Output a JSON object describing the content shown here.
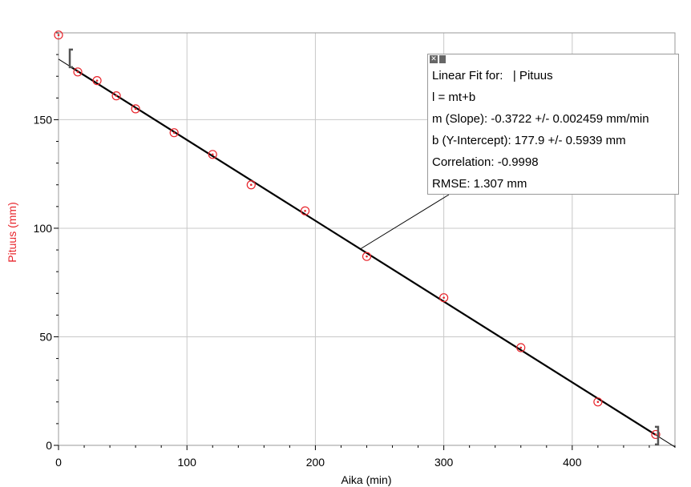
{
  "chart_data": {
    "type": "scatter",
    "xlabel": "Aika (min)",
    "ylabel": "Pituus (mm)",
    "xlim": [
      0,
      480
    ],
    "ylim": [
      0,
      190
    ],
    "xticks": [
      0,
      100,
      200,
      300,
      400
    ],
    "yticks": [
      0,
      50,
      100,
      150
    ],
    "x_tick_labels": [
      "0",
      "100",
      "200",
      "300",
      "400"
    ],
    "y_tick_labels": [
      "0",
      "50",
      "100",
      "150"
    ],
    "grid": true,
    "colors": {
      "points": "#e8242b",
      "fit_line": "#000000",
      "ylabel": "#e8242b",
      "grid": "#c8c8c8"
    },
    "series": [
      {
        "x": [
          0,
          15,
          30,
          45,
          60,
          90,
          120,
          150,
          192,
          240,
          300,
          360,
          420,
          465
        ],
        "y": [
          189,
          172,
          168,
          161,
          155,
          144,
          134,
          120,
          108,
          87,
          68,
          45,
          20,
          5
        ]
      }
    ],
    "fit": {
      "slope": -0.3722,
      "intercept": 177.9,
      "range": [
        10,
        465
      ]
    },
    "annotation": {
      "lines": [
        "Linear Fit for:   | Pituus",
        "l = mt+b",
        "m (Slope): -0.3722 +/- 0.002459 mm/min",
        "b (Y-Intercept): 177.9 +/- 0.5939 mm",
        "Correlation: -0.9998",
        "RMSE: 1.307 mm"
      ],
      "close_icon": "close-icon",
      "menu_icon": "menu-icon"
    }
  }
}
